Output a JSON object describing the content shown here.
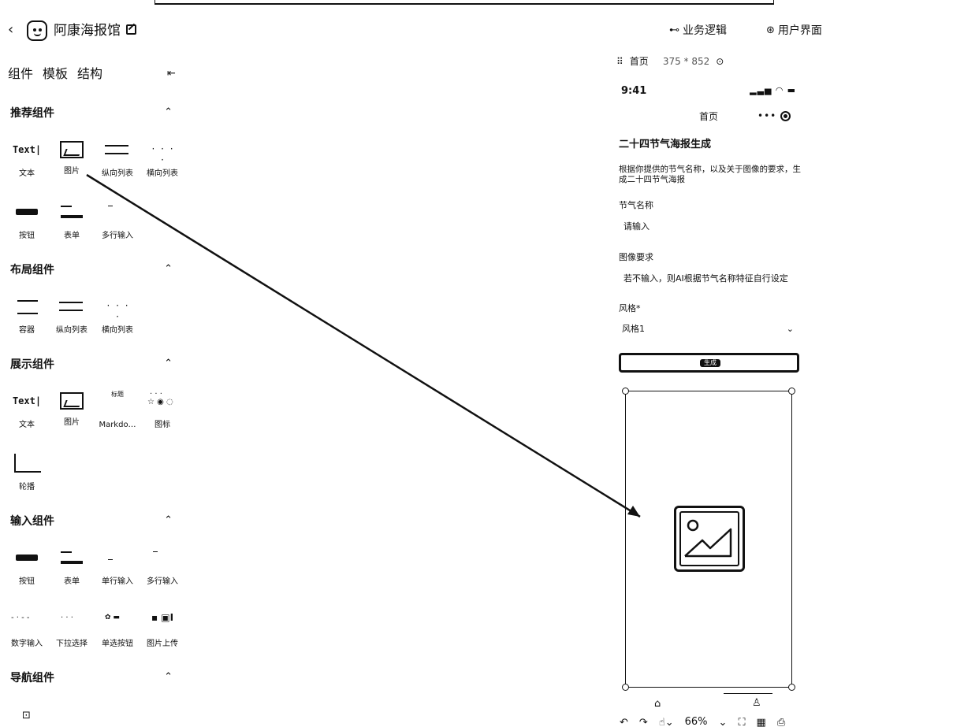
{
  "header": {
    "app_title": "阿康海报馆",
    "business_logic": "业务逻辑",
    "user_interface": "用户界面"
  },
  "sidebar": {
    "tabs": [
      "组件",
      "模板",
      "结构"
    ],
    "sections": [
      {
        "title": "推荐组件",
        "items": [
          "文本",
          "图片",
          "纵向列表",
          "横向列表",
          "按钮",
          "表单",
          "多行输入"
        ]
      },
      {
        "title": "布局组件",
        "items": [
          "容器",
          "纵向列表",
          "横向列表"
        ]
      },
      {
        "title": "展示组件",
        "items": [
          "文本",
          "图片",
          "Markdo…",
          "图标",
          "轮播"
        ]
      },
      {
        "title": "输入组件",
        "items": [
          "按钮",
          "表单",
          "单行输入",
          "多行输入",
          "数字输入",
          "下拉选择",
          "单选按钮",
          "图片上传"
        ]
      },
      {
        "title": "导航组件",
        "items": []
      }
    ],
    "thumb_text": "Text|",
    "thumb_md_title": "标题"
  },
  "canvas": {
    "page_name": "首页",
    "page_size": "375 * 852",
    "status_time": "9:41",
    "nav_title": "首页",
    "form_title": "二十四节气海报生成",
    "form_desc": "根据你提供的节气名称，以及关于图像的要求，生成二十四节气海报",
    "field1_label": "节气名称",
    "field1_placeholder": "请输入",
    "field2_label": "图像要求",
    "field2_placeholder": "若不输入，则AI根据节气名称特征自行设定",
    "field3_label": "风格*",
    "field3_value": "风格1",
    "button_label": "生成",
    "zoom": "66%"
  }
}
